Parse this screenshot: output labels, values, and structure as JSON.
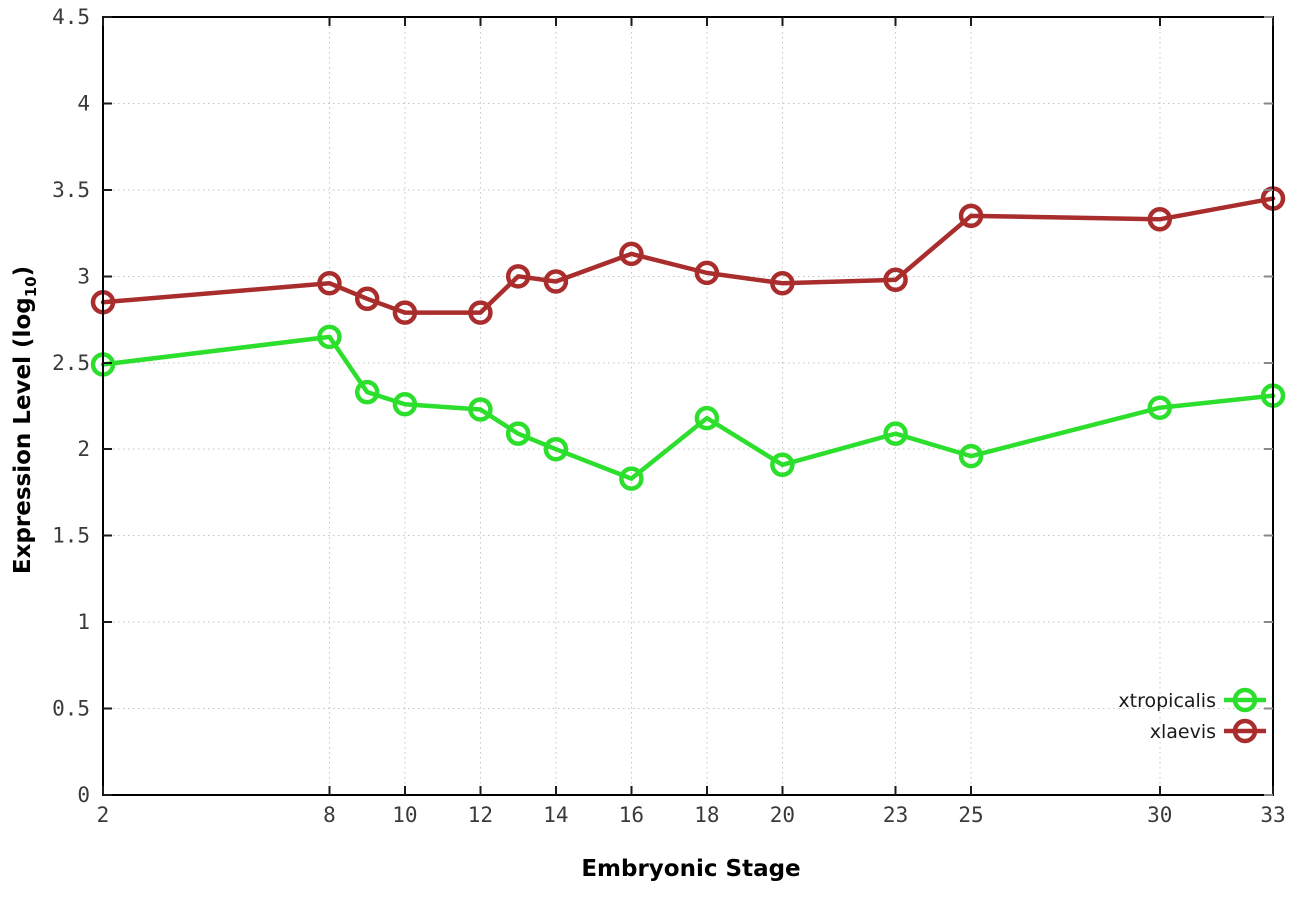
{
  "page": {
    "background": "#ffffff"
  },
  "chart_data": {
    "type": "line",
    "title": "",
    "xlabel": "Embryonic Stage",
    "ylabel": "Expression Level (log10)",
    "ylabel_parts": {
      "prefix": "Expression Level (log",
      "sub": "10",
      "suffix": ")"
    },
    "xlim": [
      2,
      33
    ],
    "ylim": [
      0,
      4.5
    ],
    "grid": true,
    "legend_position": "bottom-right",
    "x": [
      2,
      8,
      9,
      10,
      12,
      13,
      14,
      16,
      18,
      20,
      23,
      25,
      30,
      33
    ],
    "xticks": [
      2,
      8,
      10,
      12,
      14,
      16,
      18,
      20,
      23,
      25,
      30,
      33
    ],
    "xtick_labels": [
      "2",
      "8",
      "10",
      "12",
      "14",
      "16",
      "18",
      "20",
      "23",
      "25",
      "30",
      "33"
    ],
    "yticks": [
      0,
      0.5,
      1,
      1.5,
      2,
      2.5,
      3,
      3.5,
      4,
      4.5
    ],
    "ytick_labels": [
      "0",
      "0.5",
      "1",
      "1.5",
      "2",
      "2.5",
      "3",
      "3.5",
      "4",
      "4.5"
    ],
    "series": [
      {
        "name": "xtropicalis",
        "color": "#2cdf2c",
        "values": [
          2.49,
          2.65,
          2.33,
          2.26,
          2.23,
          2.09,
          2.0,
          1.83,
          2.18,
          1.91,
          2.09,
          1.96,
          2.24,
          2.31
        ]
      },
      {
        "name": "xlaevis",
        "color": "#aa2d2d",
        "values": [
          2.85,
          2.96,
          2.87,
          2.79,
          2.79,
          3.0,
          2.97,
          3.13,
          3.02,
          2.96,
          2.98,
          3.35,
          3.33,
          3.45
        ]
      }
    ],
    "style": {
      "grid_color": "#c4c4c4",
      "frame_color": "#000000",
      "tick_color": "#1a1a1a",
      "mirror_tick_color": "#888888"
    }
  }
}
